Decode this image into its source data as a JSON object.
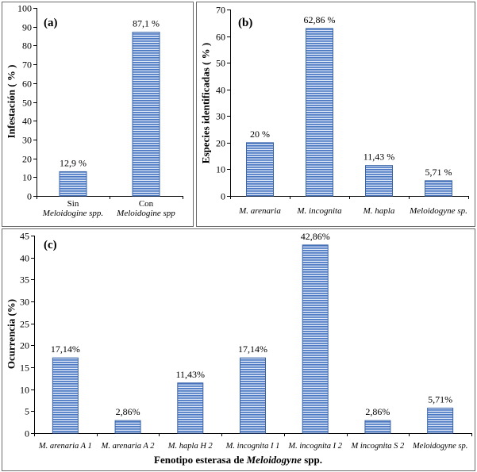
{
  "colors": {
    "bar_stripe": "#4a78c2",
    "bar_gap": "#dce6f6",
    "bar_border": "#3a64a8",
    "axis": "#000000",
    "frame": "#6b6b6b"
  },
  "chart_data": [
    {
      "panel_label": "(a)",
      "type": "bar",
      "categories": [
        [
          "Sin",
          "Meloidogine spp."
        ],
        [
          "Con",
          "Meloidogine spp"
        ]
      ],
      "values": [
        12.9,
        87.1
      ],
      "value_labels": [
        "12,9 %",
        "87,1 %"
      ],
      "ylabel": "Infestación ( % )",
      "ylim": [
        0,
        100
      ],
      "yticks": [
        0,
        10,
        20,
        30,
        40,
        50,
        60,
        70,
        80,
        90,
        100
      ],
      "grid": false,
      "legend": "none"
    },
    {
      "panel_label": "(b)",
      "type": "bar",
      "categories": [
        "M. arenaria",
        "M. incognita",
        "M. hapla",
        "Meloidogyne sp."
      ],
      "values": [
        20,
        62.86,
        11.43,
        5.71
      ],
      "value_labels": [
        "20 %",
        "62,86 %",
        "11,43 %",
        "5,71 %"
      ],
      "ylabel": "Especies identificadas ( % )",
      "ylim": [
        0,
        70
      ],
      "yticks": [
        0,
        10,
        20,
        30,
        40,
        50,
        60,
        70
      ],
      "grid": false,
      "legend": "none"
    },
    {
      "panel_label": "(c)",
      "type": "bar",
      "categories": [
        "M. arenaria A 1",
        "M. arenaria A 2",
        "M. hapla H 2",
        "M. incognita I 1",
        "M. incognita I 2",
        "M incognita S 2",
        "Meloidogyne sp."
      ],
      "values": [
        17.14,
        2.86,
        11.43,
        17.14,
        42.86,
        2.86,
        5.71
      ],
      "value_labels": [
        "17,14%",
        "2,86%",
        "11,43%",
        "17,14%",
        "42,86%",
        "2,86%",
        "5,71%"
      ],
      "ylabel": "Ocurrencia (%)",
      "xlabel": [
        {
          "text": "Fenotipo esterasa de ",
          "italic": false
        },
        {
          "text": "Meloidogyne",
          "italic": true
        },
        {
          "text": " spp.",
          "italic": false
        }
      ],
      "ylim": [
        0,
        45
      ],
      "yticks": [
        0,
        5,
        10,
        15,
        20,
        25,
        30,
        35,
        40,
        45
      ],
      "grid": false,
      "legend": "none"
    }
  ]
}
